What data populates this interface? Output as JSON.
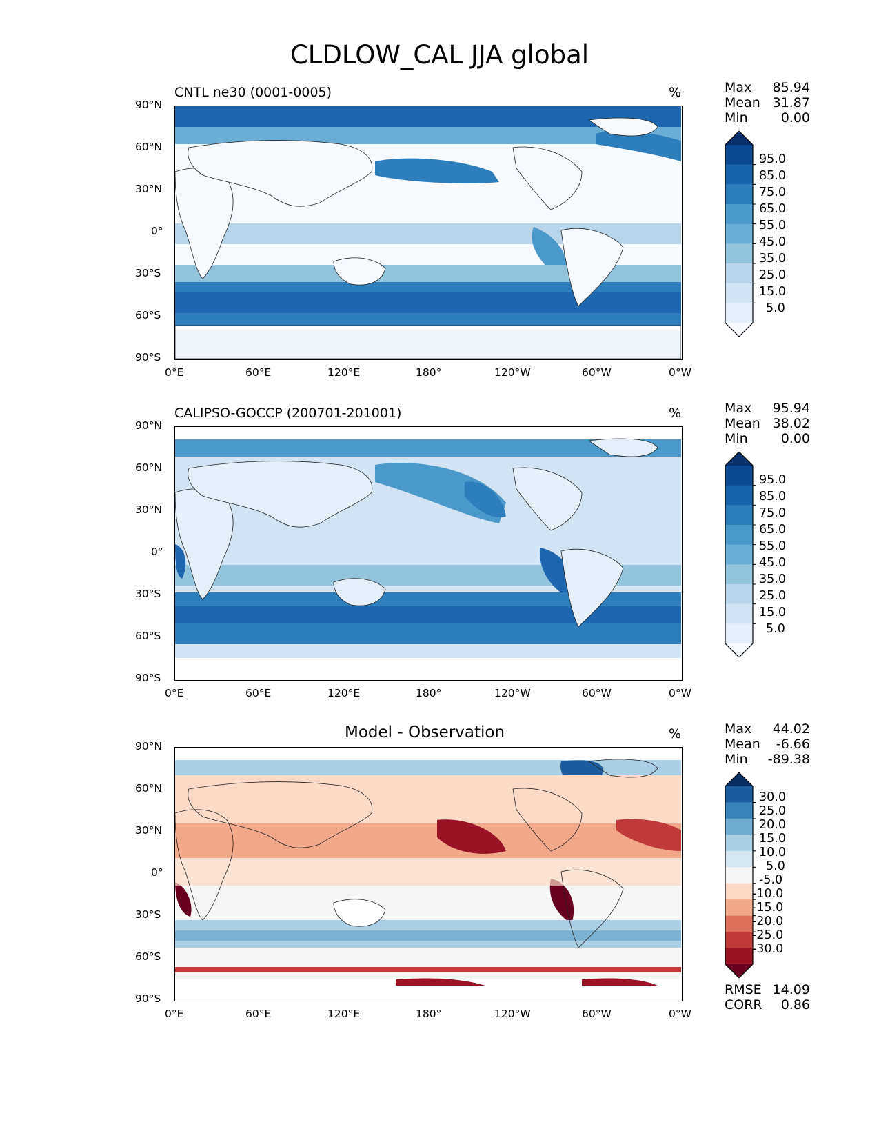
{
  "figure": {
    "title": "CLDLOW_CAL JJA global",
    "units": "%"
  },
  "axes": {
    "lat_ticks": [
      "90°N",
      "60°N",
      "30°N",
      "0°",
      "30°S",
      "60°S",
      "90°S"
    ],
    "lon_ticks": [
      "0°E",
      "60°E",
      "120°E",
      "180°",
      "120°W",
      "60°W",
      "0°W"
    ]
  },
  "panels": [
    {
      "title": "CNTL ne30 (0001-0005)",
      "units": "%",
      "stats": [
        {
          "label": "Max",
          "value": "85.94"
        },
        {
          "label": "Mean",
          "value": "31.87"
        },
        {
          "label": "Min",
          "value": "0.00"
        }
      ],
      "colorbar_labels": [
        "95.0",
        "85.0",
        "75.0",
        "65.0",
        "55.0",
        "45.0",
        "35.0",
        "25.0",
        "15.0",
        "5.0"
      ],
      "colorbar_colors": [
        "#08306b",
        "#0b4a91",
        "#1764ab",
        "#2f7ebc",
        "#4b98ca",
        "#6aaed6",
        "#93c4de",
        "#b8d5ea",
        "#d2e3f3",
        "#e4eff9",
        "#f6faff"
      ]
    },
    {
      "title": "CALIPSO-GOCCP (200701-201001)",
      "units": "%",
      "stats": [
        {
          "label": "Max",
          "value": "95.94"
        },
        {
          "label": "Mean",
          "value": "38.02"
        },
        {
          "label": "Min",
          "value": "0.00"
        }
      ],
      "colorbar_labels": [
        "95.0",
        "85.0",
        "75.0",
        "65.0",
        "55.0",
        "45.0",
        "35.0",
        "25.0",
        "15.0",
        "5.0"
      ],
      "colorbar_colors": [
        "#08306b",
        "#0b4a91",
        "#1764ab",
        "#2f7ebc",
        "#4b98ca",
        "#6aaed6",
        "#93c4de",
        "#b8d5ea",
        "#d2e3f3",
        "#e4eff9",
        "#f6faff"
      ]
    },
    {
      "title": "Model - Observation",
      "units": "%",
      "stats": [
        {
          "label": "Max",
          "value": "44.02"
        },
        {
          "label": "Mean",
          "value": "-6.66"
        },
        {
          "label": "Min",
          "value": "-89.38"
        }
      ],
      "colorbar_labels": [
        "30.0",
        "25.0",
        "20.0",
        "15.0",
        "10.0",
        "5.0",
        "-5.0",
        "-10.0",
        "-15.0",
        "-20.0",
        "-25.0",
        "-30.0"
      ],
      "colorbar_colors": [
        "#053061",
        "#1c5c9c",
        "#3a84bb",
        "#70abd0",
        "#a8cfe4",
        "#d6e7f1",
        "#f6f6f6",
        "#fcdac6",
        "#f2a98a",
        "#dc6e5a",
        "#c03a3a",
        "#9a1226",
        "#67001f"
      ],
      "footer_stats": [
        {
          "label": "RMSE",
          "value": "14.09"
        },
        {
          "label": "CORR",
          "value": "0.86"
        }
      ]
    }
  ]
}
